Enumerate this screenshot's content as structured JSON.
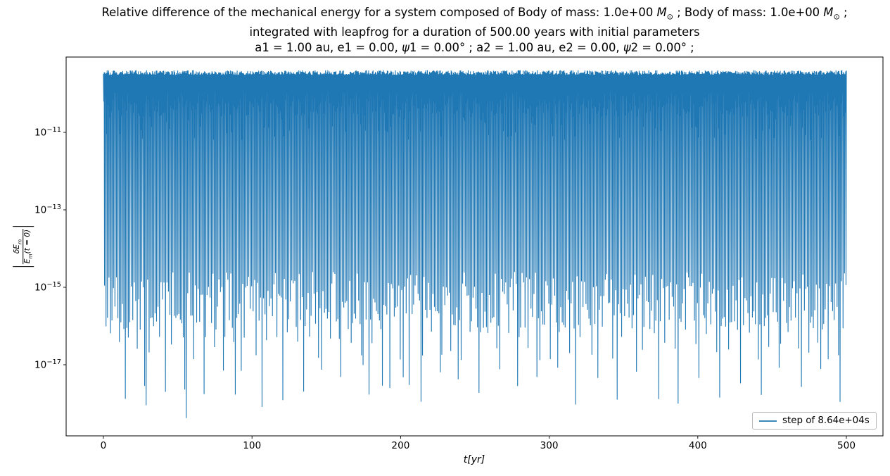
{
  "chart_data": {
    "type": "line",
    "yscale": "log",
    "grid": false,
    "title_lines": [
      "Relative difference of the mechanical energy for a system composed of Body of mass: 1.0e+00 M⊙ ; Body of mass: 1.0e+00 M⊙ ;",
      "integrated with leapfrog for a duration of 500.00 years with initial parameters",
      "a1 = 1.00 au, e1 = 0.00, ψ1 = 0.00° ; a2 = 1.00 au, e2 = 0.00, ψ2 = 0.00° ;"
    ],
    "xlabel": "t[yr]",
    "ylabel": "|δEm / Em(t = 0)|",
    "xlim": [
      -25,
      525
    ],
    "ylim": [
      1.4e-19,
      8.8e-10
    ],
    "x_ticks": [
      0,
      100,
      200,
      300,
      400,
      500
    ],
    "y_tick_exponents": [
      -11,
      -13,
      -15,
      -17
    ],
    "legend": {
      "label": "step of 8.64e+04s",
      "location": "lower right",
      "line_color": "#1f77b4"
    },
    "series": [
      {
        "name": "step of 8.64e+04s",
        "color": "#1f77b4",
        "t_start": 0,
        "t_end": 500,
        "orbital_periods": 500,
        "envelope_top": 3.5e-10,
        "shallow_dip_log10_range": [
          -10.6,
          -9.95
        ],
        "base_dip_log10_range": [
          -16.1,
          -14.6
        ],
        "medium_dip_log10_range": [
          -16.9,
          -16.0
        ],
        "medium_dip_interval_yr": 6.8,
        "deep_dip_log10_range": [
          -18.1,
          -16.95
        ],
        "deep_dip_interval_yr": 13.55,
        "pinned_deep_dips": [
          {
            "t": 28,
            "value": 9e-19
          },
          {
            "t": 41,
            "value": 2e-18
          },
          {
            "t": 55,
            "value": 4.2e-19
          },
          {
            "t": 88,
            "value": 1.7e-18
          },
          {
            "t": 178,
            "value": 1.7e-18
          },
          {
            "t": 192,
            "value": 2.5e-18
          },
          {
            "t": 205,
            "value": 3e-18
          }
        ],
        "seed": 20
      }
    ]
  },
  "title_segments": {
    "l1a": "Relative difference of the mechanical energy for a system composed of Body of mass: 1.0e+00 ",
    "l1_m1": "M",
    "l1_sun1": "⊙",
    "l1b": " ; Body of mass: 1.0e+00 ",
    "l1_m2": "M",
    "l1_sun2": "⊙",
    "l1c": " ;",
    "l2": "integrated with leapfrog for a duration of 500.00 years with initial parameters",
    "l3a": "a1 = 1.00 au, e1 = 0.00, ",
    "l3_psi1": "ψ",
    "l3b": "1 = 0.00° ; a2 = 1.00 au, e2 = 0.00, ",
    "l3_psi2": "ψ",
    "l3c": "2 = 0.00° ;"
  },
  "ylabel_parts": {
    "num_base": "δE",
    "num_sub": "m",
    "den_base": "E",
    "den_sub": "m",
    "den_tail": "(t = 0)"
  }
}
